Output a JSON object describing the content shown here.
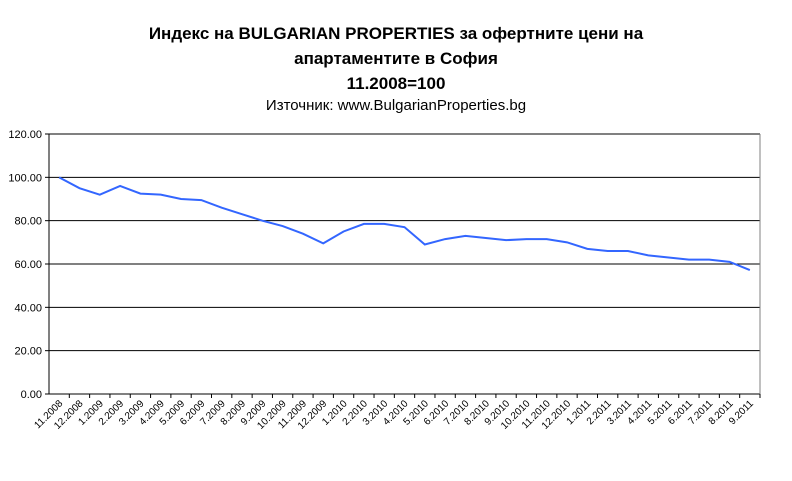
{
  "chart_data": {
    "type": "line",
    "title_lines": [
      "Индекс на BULGARIAN PROPERTIES за офертните цени на",
      "апартаментите в София",
      "11.2008=100"
    ],
    "subtitle": "Източник: www.BulgarianProperties.bg",
    "categories": [
      "11.2008",
      "12.2008",
      "1.2009",
      "2.2009",
      "3.2009",
      "4.2009",
      "5.2009",
      "6.2009",
      "7.2009",
      "8.2009",
      "9.2009",
      "10.2009",
      "11.2009",
      "12.2009",
      "1.2010",
      "2.2010",
      "3.2010",
      "4.2010",
      "5.2010",
      "6.2010",
      "7.2010",
      "8.2010",
      "9.2010",
      "10.2010",
      "11.2010",
      "12.2010",
      "1.2011",
      "2.2011",
      "3.2011",
      "4.2011",
      "5.2011",
      "6.2011",
      "7.2011",
      "8.2011",
      "9.2011"
    ],
    "values": [
      100,
      95,
      92,
      96,
      92.5,
      92,
      90,
      89.5,
      86,
      83,
      80,
      77.5,
      74,
      69.5,
      75,
      78.5,
      78.5,
      77,
      69,
      71.5,
      73,
      72,
      71,
      71.5,
      71.5,
      70,
      67,
      66,
      66,
      64,
      63,
      62,
      62,
      61,
      57.2
    ],
    "ylim": [
      0,
      120
    ],
    "yticks": [
      "0.00",
      "20.00",
      "40.00",
      "60.00",
      "80.00",
      "100.00",
      "120.00"
    ],
    "grid": true,
    "legend": "none",
    "line_color": "#3366ff"
  }
}
